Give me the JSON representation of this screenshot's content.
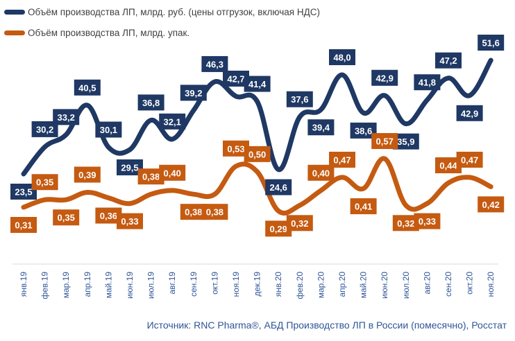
{
  "chart_data": {
    "type": "line",
    "categories": [
      "янв.19",
      "фев.19",
      "мар.19",
      "апр.19",
      "май.19",
      "июн.19",
      "июл.19",
      "авг.19",
      "сен.19",
      "окт.19",
      "ноя.19",
      "дек.19",
      "янв.20",
      "фев.20",
      "мар.20",
      "апр.20",
      "май.20",
      "июн.20",
      "июл.20",
      "авг.20",
      "сен.20",
      "окт.20",
      "ноя.20"
    ],
    "series": [
      {
        "name": "Объём производства ЛП, млрд. руб. (цены отгрузок, включая НДС)",
        "color": "#1f3864",
        "values": [
          23.5,
          30.2,
          33.2,
          40.5,
          30.1,
          29.5,
          36.8,
          32.1,
          39.2,
          46.3,
          42.7,
          41.4,
          24.6,
          37.6,
          39.4,
          48.0,
          38.6,
          42.9,
          35.9,
          41.8,
          47.2,
          42.9,
          51.6
        ],
        "labels": [
          "23,5",
          "30,2",
          "33,2",
          "40,5",
          "30,1",
          "29,5",
          "36,8",
          "32,1",
          "39,2",
          "46,3",
          "42,7",
          "41,4",
          "24,6",
          "37,6",
          "39,4",
          "48,0",
          "38,6",
          "42,9",
          "35,9",
          "41,8",
          "47,2",
          "42,9",
          "51,6"
        ]
      },
      {
        "name": "Объём производства ЛП, млрд. упак.",
        "color": "#c55a11",
        "values": [
          0.31,
          0.35,
          0.35,
          0.39,
          0.36,
          0.33,
          0.38,
          0.4,
          0.38,
          0.38,
          0.53,
          0.5,
          0.29,
          0.32,
          0.4,
          0.47,
          0.41,
          0.57,
          0.32,
          0.33,
          0.44,
          0.47,
          0.42
        ],
        "labels": [
          "0,31",
          "0,35",
          "0,35",
          "0,39",
          "0,36",
          "0,33",
          "0,38",
          "0,40",
          "0,38",
          "0,38",
          "0,53",
          "0,50",
          "0,29",
          "0,32",
          "0,40",
          "0,47",
          "0,41",
          "0,57",
          "0,32",
          "0,33",
          "0,44",
          "0,47",
          "0,42"
        ]
      }
    ],
    "axis_color": "#d9d9d9",
    "category_label_color": "#2f5597"
  },
  "legend": {
    "rub": "Объём производства ЛП, млрд. руб. (цены отгрузок, включая НДС)",
    "pack": "Объём производства ЛП, млрд. упак."
  },
  "source": "Источник: RNC Pharma®, АБД Производство ЛП в России (помесячно), Росстат"
}
